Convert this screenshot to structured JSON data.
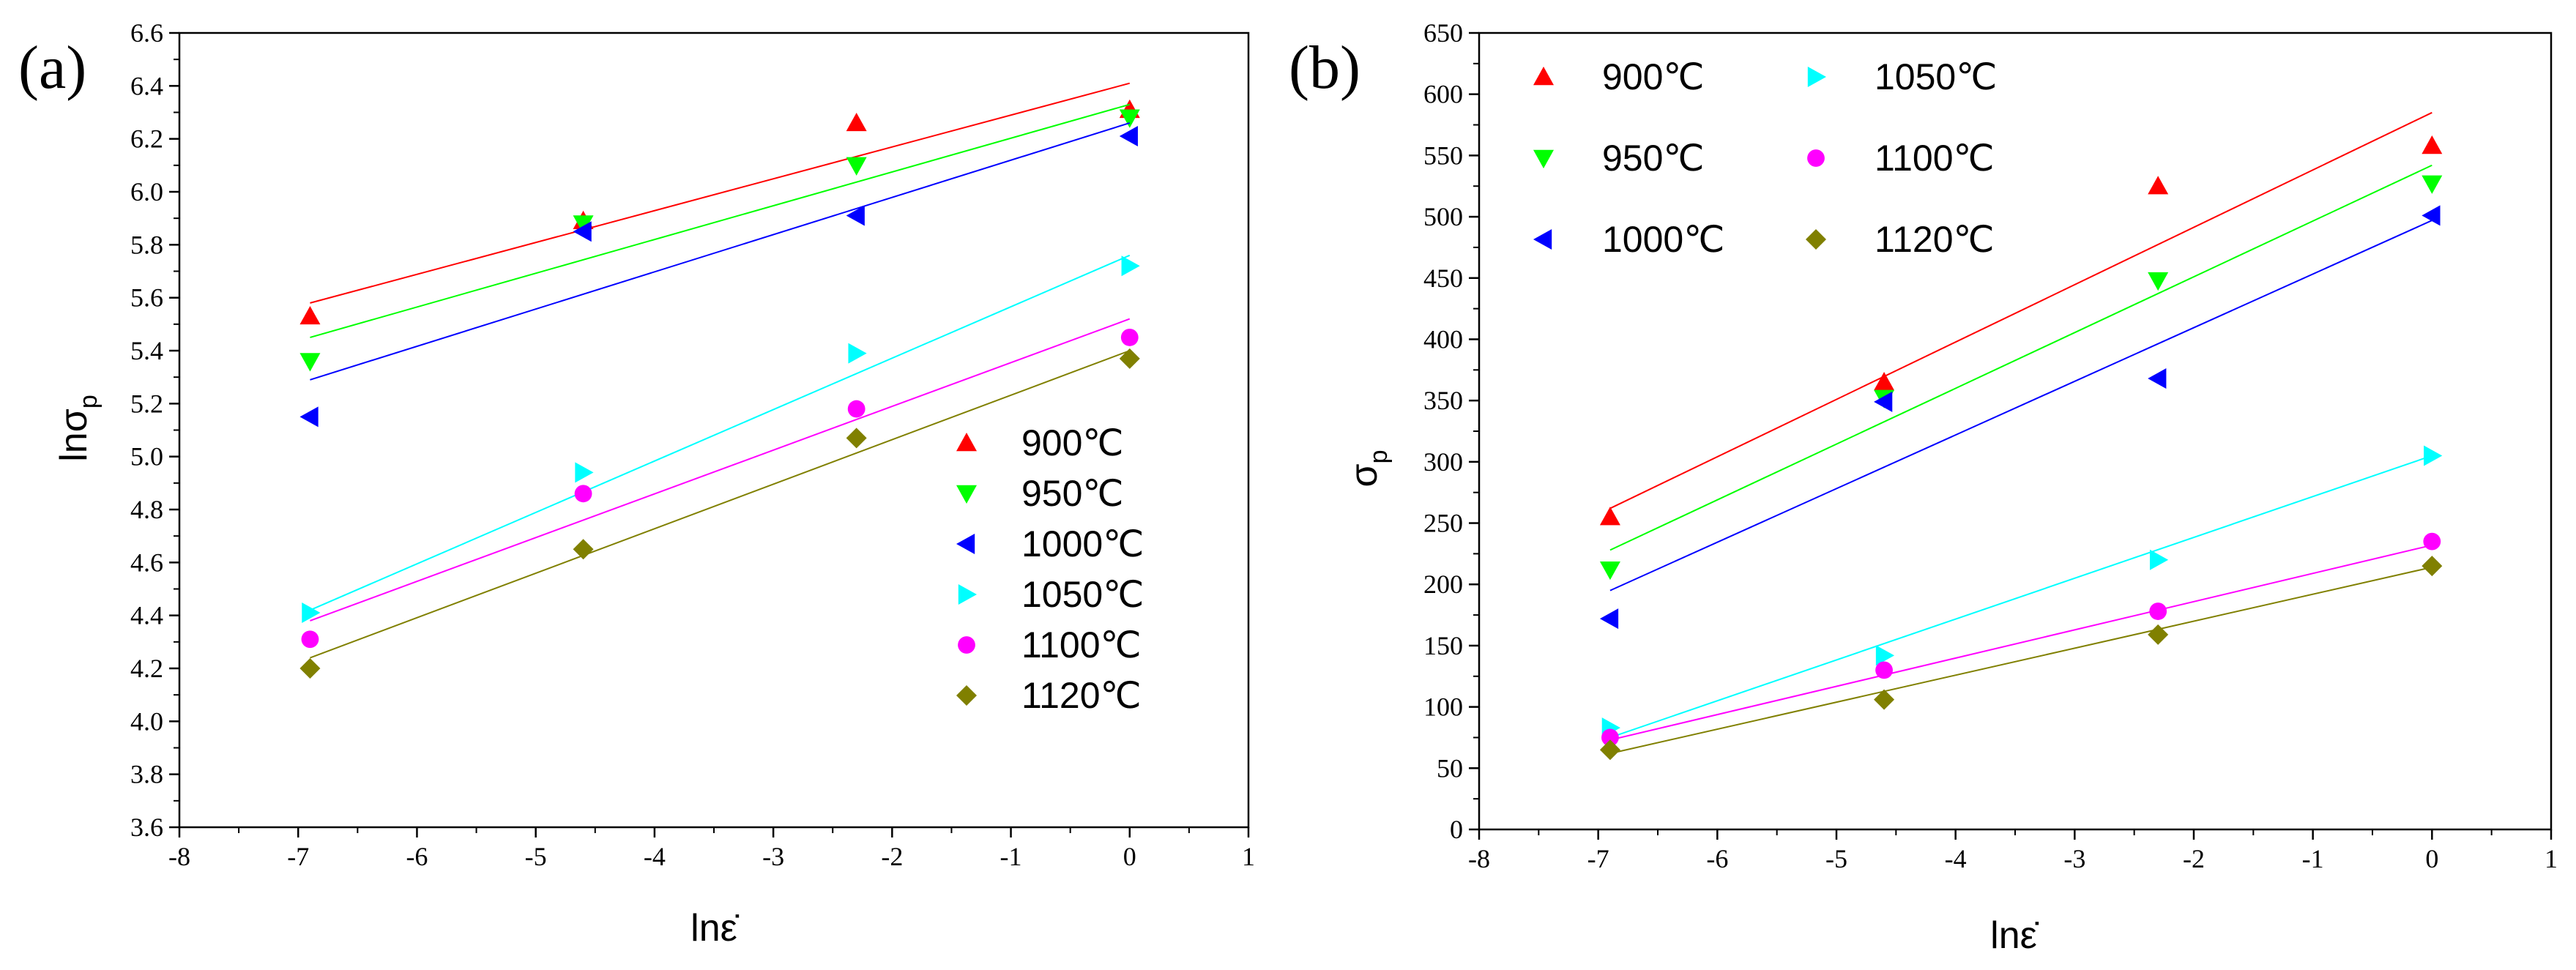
{
  "chart_data": [
    {
      "type": "scatter",
      "panel_label": "(a)",
      "title": "",
      "xlabel": "lnε̇",
      "ylabel": "lnσ",
      "ylabel_sub": "p",
      "xlim": [
        -8,
        1
      ],
      "ylim": [
        3.6,
        6.6
      ],
      "xticks": [
        "-8",
        "-7",
        "-6",
        "-5",
        "-4",
        "-3",
        "-2",
        "-1",
        "0",
        "1"
      ],
      "yticks": [
        "3.6",
        "3.8",
        "4.0",
        "4.2",
        "4.4",
        "4.6",
        "4.8",
        "5.0",
        "5.2",
        "5.4",
        "5.6",
        "5.8",
        "6.0",
        "6.2",
        "6.4",
        "6.6"
      ],
      "legend_position": "right-center",
      "x": [
        -6.9,
        -4.6,
        -2.3,
        0
      ],
      "series": [
        {
          "name": "900℃",
          "marker": "triangle-up",
          "color": "#ff0000",
          "values": [
            5.53,
            5.89,
            6.26,
            6.31
          ],
          "fit": [
            5.58,
            6.41
          ]
        },
        {
          "name": "950℃",
          "marker": "triangle-down",
          "color": "#00ff00",
          "values": [
            5.36,
            5.88,
            6.1,
            6.28
          ],
          "fit": [
            5.45,
            6.33
          ]
        },
        {
          "name": "1000℃",
          "marker": "triangle-left",
          "color": "#0000ff",
          "values": [
            5.15,
            5.85,
            5.91,
            6.21
          ],
          "fit": [
            5.29,
            6.26
          ]
        },
        {
          "name": "1050℃",
          "marker": "triangle-right",
          "color": "#00ffff",
          "values": [
            4.41,
            4.94,
            5.39,
            5.72
          ],
          "fit": [
            4.42,
            5.76
          ]
        },
        {
          "name": "1100℃",
          "marker": "circle",
          "color": "#ff00ff",
          "values": [
            4.31,
            4.86,
            5.18,
            5.45
          ],
          "fit": [
            4.38,
            5.52
          ]
        },
        {
          "name": "1120℃",
          "marker": "diamond",
          "color": "#808000",
          "values": [
            4.2,
            4.65,
            5.07,
            5.37
          ],
          "fit": [
            4.24,
            5.4
          ]
        }
      ]
    },
    {
      "type": "scatter",
      "panel_label": "(b)",
      "title": "",
      "xlabel": "lnε̇",
      "ylabel": "σ",
      "ylabel_sub": "p",
      "xlim": [
        -8,
        1
      ],
      "ylim": [
        0,
        650
      ],
      "xticks": [
        "-8",
        "-7",
        "-6",
        "-5",
        "-4",
        "-3",
        "-2",
        "-1",
        "0",
        "1"
      ],
      "yticks": [
        "0",
        "50",
        "100",
        "150",
        "200",
        "250",
        "300",
        "350",
        "400",
        "450",
        "500",
        "550",
        "600",
        "650"
      ],
      "legend_position": "top-left",
      "x": [
        -6.9,
        -4.6,
        -2.3,
        0
      ],
      "series": [
        {
          "name": "900℃",
          "marker": "triangle-up",
          "color": "#ff0000",
          "values": [
            255,
            365,
            525,
            558
          ],
          "fit": [
            262,
            585
          ]
        },
        {
          "name": "950℃",
          "marker": "triangle-down",
          "color": "#00ff00",
          "values": [
            212,
            352,
            448,
            527
          ],
          "fit": [
            228,
            542
          ]
        },
        {
          "name": "1000℃",
          "marker": "triangle-left",
          "color": "#0000ff",
          "values": [
            172,
            349,
            368,
            501
          ],
          "fit": [
            195,
            497
          ]
        },
        {
          "name": "1050℃",
          "marker": "triangle-right",
          "color": "#00ffff",
          "values": [
            83,
            142,
            220,
            305
          ],
          "fit": [
            75,
            305
          ]
        },
        {
          "name": "1100℃",
          "marker": "circle",
          "color": "#ff00ff",
          "values": [
            75,
            130,
            178,
            235
          ],
          "fit": [
            73,
            232
          ]
        },
        {
          "name": "1120℃",
          "marker": "diamond",
          "color": "#808000",
          "values": [
            65,
            106,
            159,
            215
          ],
          "fit": [
            62,
            214
          ]
        }
      ]
    }
  ]
}
